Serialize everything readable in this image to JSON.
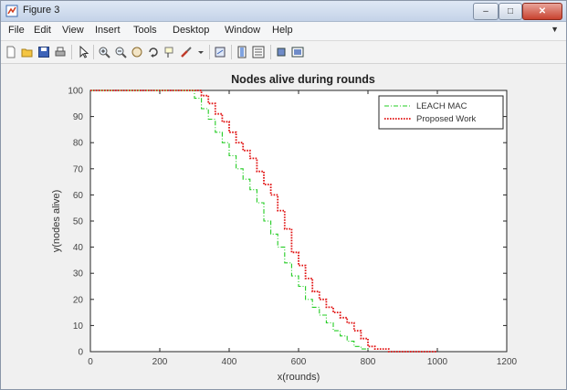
{
  "window": {
    "title": "Figure 3",
    "minimize_icon": "minimize-icon",
    "maximize_icon": "maximize-icon",
    "close_icon": "close-icon"
  },
  "menu": [
    "File",
    "Edit",
    "View",
    "Insert",
    "Tools",
    "Desktop",
    "Window",
    "Help"
  ],
  "toolbar_icons": [
    "new-figure-icon",
    "open-file-icon",
    "save-icon",
    "print-icon",
    "pointer-icon",
    "zoom-in-icon",
    "zoom-out-icon",
    "pan-icon",
    "rotate-3d-icon",
    "data-cursor-icon",
    "brush-icon",
    "link-plot-icon",
    "colorbar-icon",
    "legend-icon",
    "hide-plot-tools-icon",
    "show-plot-tools-icon"
  ],
  "colors": {
    "leach": "#22cc22",
    "proposed": "#e01010",
    "axes_bg": "#ffffff",
    "figure_bg": "#f0f0f0"
  },
  "chart_data": {
    "type": "line",
    "title": "Nodes alive during rounds",
    "xlabel": "x(rounds)",
    "ylabel": "y(nodes alive)",
    "xlim": [
      0,
      1200
    ],
    "ylim": [
      0,
      100
    ],
    "xticks": [
      0,
      200,
      400,
      600,
      800,
      1000,
      1200
    ],
    "yticks": [
      0,
      10,
      20,
      30,
      40,
      50,
      60,
      70,
      80,
      90,
      100
    ],
    "grid": false,
    "legend_position": "top-right",
    "series": [
      {
        "name": "LEACH MAC",
        "style": "dash-dot",
        "color": "#22cc22",
        "x": [
          0,
          280,
          300,
          320,
          340,
          360,
          380,
          400,
          420,
          440,
          460,
          480,
          500,
          520,
          540,
          560,
          580,
          600,
          620,
          640,
          660,
          680,
          700,
          720,
          740,
          760,
          780,
          800
        ],
        "y": [
          100,
          100,
          97,
          93,
          89,
          84,
          80,
          75,
          70,
          66,
          62,
          57,
          50,
          45,
          40,
          34,
          29,
          25,
          20,
          17,
          14,
          11,
          8,
          6,
          4,
          2,
          1,
          0
        ]
      },
      {
        "name": "Proposed Work",
        "style": "dotted",
        "color": "#e01010",
        "x": [
          0,
          300,
          320,
          340,
          360,
          380,
          400,
          420,
          440,
          460,
          480,
          500,
          520,
          540,
          560,
          580,
          600,
          620,
          640,
          660,
          680,
          700,
          720,
          740,
          760,
          780,
          800,
          820,
          840,
          860,
          880,
          1000
        ],
        "y": [
          100,
          100,
          98,
          95,
          91,
          88,
          84,
          80,
          77,
          74,
          69,
          64,
          60,
          54,
          47,
          38,
          33,
          28,
          23,
          20,
          17,
          15,
          13,
          11,
          8,
          5,
          2,
          1,
          1,
          0,
          0,
          0
        ]
      }
    ]
  }
}
